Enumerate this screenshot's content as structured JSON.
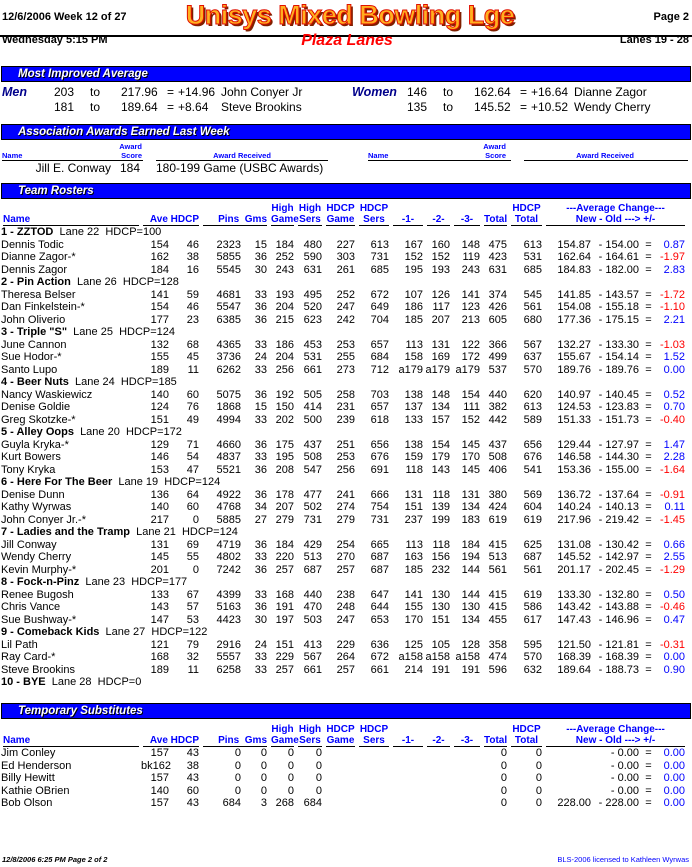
{
  "header": {
    "date_week": "12/6/2006   Week 12 of 27",
    "title": "Unisys Mixed Bowling Lge",
    "page": "Page 2",
    "day_time": "Wednesday   5:15 PM",
    "center": "Plaza Lanes",
    "lanes": "Lanes 19 - 28"
  },
  "most_improved": {
    "title": "Most Improved Average",
    "men_label": "Men",
    "women_label": "Women",
    "to": "to",
    "eq": "=",
    "men": [
      {
        "old": "203",
        "new": "217.96",
        "diff": "+14.96",
        "name": "John Conyer Jr"
      },
      {
        "old": "181",
        "new": "189.64",
        "diff": "+8.64",
        "name": "Steve Brookins"
      }
    ],
    "women": [
      {
        "old": "146",
        "new": "162.64",
        "diff": "+16.64",
        "name": "Dianne Zagor"
      },
      {
        "old": "135",
        "new": "145.52",
        "diff": "+10.52",
        "name": "Wendy Cherry"
      }
    ]
  },
  "awards": {
    "title": "Association Awards Earned Last Week",
    "col_name": "Name",
    "col_award": "Award",
    "col_score": "Score",
    "col_received": "Award Received",
    "rows": [
      {
        "name": "Jill E. Conway",
        "score": "184",
        "award": "180-199 Game (USBC Awards)"
      }
    ]
  },
  "rosters": {
    "title": "Team Rosters",
    "columns": {
      "name": "Name",
      "ave_hdcp": "Ave HDCP",
      "pins_gms": "Pins  Gms",
      "high": "High",
      "game": "Game",
      "sers": "Sers",
      "hdcp": "HDCP",
      "g1": "-1-",
      "g2": "-2-",
      "g3": "-3-",
      "total": "Total",
      "avg_change": "---Average Change---",
      "new_old": "New - Old ---> +/-"
    },
    "teams": [
      {
        "name": "1 - ZZTOD",
        "lane": "Lane 22",
        "hdcp": "HDCP=100",
        "players": [
          [
            "Dennis Todic",
            "154",
            "46",
            "2323",
            "15",
            "184",
            "480",
            "227",
            "613",
            "167",
            "160",
            "148",
            "475",
            "613",
            "154.87",
            "154.00",
            "0.87"
          ],
          [
            "Dianne Zagor-*",
            "162",
            "38",
            "5855",
            "36",
            "252",
            "590",
            "303",
            "731",
            "152",
            "152",
            "119",
            "423",
            "531",
            "162.64",
            "164.61",
            "-1.97"
          ],
          [
            "Dennis Zagor",
            "184",
            "16",
            "5545",
            "30",
            "243",
            "631",
            "261",
            "685",
            "195",
            "193",
            "243",
            "631",
            "685",
            "184.83",
            "182.00",
            "2.83"
          ]
        ]
      },
      {
        "name": "2 - Pin Action",
        "lane": "Lane 26",
        "hdcp": "HDCP=128",
        "players": [
          [
            "Theresa Belser",
            "141",
            "59",
            "4681",
            "33",
            "193",
            "495",
            "252",
            "672",
            "107",
            "126",
            "141",
            "374",
            "545",
            "141.85",
            "143.57",
            "-1.72"
          ],
          [
            "Dan Finkelstein-*",
            "154",
            "46",
            "5547",
            "36",
            "204",
            "520",
            "247",
            "649",
            "186",
            "117",
            "123",
            "426",
            "561",
            "154.08",
            "155.18",
            "-1.10"
          ],
          [
            "John Oliverio",
            "177",
            "23",
            "6385",
            "36",
            "215",
            "623",
            "242",
            "704",
            "185",
            "207",
            "213",
            "605",
            "680",
            "177.36",
            "175.15",
            "2.21"
          ]
        ]
      },
      {
        "name": "3 - Triple \"S\"",
        "lane": "Lane 25",
        "hdcp": "HDCP=124",
        "players": [
          [
            "June Cannon",
            "132",
            "68",
            "4365",
            "33",
            "186",
            "453",
            "253",
            "657",
            "113",
            "131",
            "122",
            "366",
            "567",
            "132.27",
            "133.30",
            "-1.03"
          ],
          [
            "Sue Hodor-*",
            "155",
            "45",
            "3736",
            "24",
            "204",
            "531",
            "255",
            "684",
            "158",
            "169",
            "172",
            "499",
            "637",
            "155.67",
            "154.14",
            "1.52"
          ],
          [
            "Santo Lupo",
            "189",
            "11",
            "6262",
            "33",
            "256",
            "661",
            "273",
            "712",
            "a179",
            "a179",
            "a179",
            "537",
            "570",
            "189.76",
            "189.76",
            "0.00"
          ]
        ]
      },
      {
        "name": "4 - Beer Nuts",
        "lane": "Lane 24",
        "hdcp": "HDCP=185",
        "players": [
          [
            "Nancy Waskiewicz",
            "140",
            "60",
            "5075",
            "36",
            "192",
            "505",
            "258",
            "703",
            "138",
            "148",
            "154",
            "440",
            "620",
            "140.97",
            "140.45",
            "0.52"
          ],
          [
            "Denise Goldie",
            "124",
            "76",
            "1868",
            "15",
            "150",
            "414",
            "231",
            "657",
            "137",
            "134",
            "111",
            "382",
            "613",
            "124.53",
            "123.83",
            "0.70"
          ],
          [
            "Greg Skotzke-*",
            "151",
            "49",
            "4994",
            "33",
            "202",
            "500",
            "239",
            "618",
            "133",
            "157",
            "152",
            "442",
            "589",
            "151.33",
            "151.73",
            "-0.40"
          ]
        ]
      },
      {
        "name": "5 - Alley Oops",
        "lane": "Lane 20",
        "hdcp": "HDCP=172",
        "players": [
          [
            "Guyla Kryka-*",
            "129",
            "71",
            "4660",
            "36",
            "175",
            "437",
            "251",
            "656",
            "138",
            "154",
            "145",
            "437",
            "656",
            "129.44",
            "127.97",
            "1.47"
          ],
          [
            "Kurt Bowers",
            "146",
            "54",
            "4837",
            "33",
            "195",
            "508",
            "253",
            "676",
            "159",
            "179",
            "170",
            "508",
            "676",
            "146.58",
            "144.30",
            "2.28"
          ],
          [
            "Tony Kryka",
            "153",
            "47",
            "5521",
            "36",
            "208",
            "547",
            "256",
            "691",
            "118",
            "143",
            "145",
            "406",
            "541",
            "153.36",
            "155.00",
            "-1.64"
          ]
        ]
      },
      {
        "name": "6 - Here For The Beer",
        "lane": "Lane 19",
        "hdcp": "HDCP=124",
        "players": [
          [
            "Denise Dunn",
            "136",
            "64",
            "4922",
            "36",
            "178",
            "477",
            "241",
            "666",
            "131",
            "118",
            "131",
            "380",
            "569",
            "136.72",
            "137.64",
            "-0.91"
          ],
          [
            "Kathy Wyrwas",
            "140",
            "60",
            "4768",
            "34",
            "207",
            "502",
            "274",
            "754",
            "151",
            "139",
            "134",
            "424",
            "604",
            "140.24",
            "140.13",
            "0.11"
          ],
          [
            "John Conyer Jr.-*",
            "217",
            "0",
            "5885",
            "27",
            "279",
            "731",
            "279",
            "731",
            "237",
            "199",
            "183",
            "619",
            "619",
            "217.96",
            "219.42",
            "-1.45"
          ]
        ]
      },
      {
        "name": "7 - Ladies and the Tramp",
        "lane": "Lane 21",
        "hdcp": "HDCP=124",
        "players": [
          [
            "Jill Conway",
            "131",
            "69",
            "4719",
            "36",
            "184",
            "429",
            "254",
            "665",
            "113",
            "118",
            "184",
            "415",
            "625",
            "131.08",
            "130.42",
            "0.66"
          ],
          [
            "Wendy Cherry",
            "145",
            "55",
            "4802",
            "33",
            "220",
            "513",
            "270",
            "687",
            "163",
            "156",
            "194",
            "513",
            "687",
            "145.52",
            "142.97",
            "2.55"
          ],
          [
            "Kevin Murphy-*",
            "201",
            "0",
            "7242",
            "36",
            "257",
            "687",
            "257",
            "687",
            "185",
            "232",
            "144",
            "561",
            "561",
            "201.17",
            "202.45",
            "-1.29"
          ]
        ]
      },
      {
        "name": "8 - Fock-n-Pinz",
        "lane": "Lane 23",
        "hdcp": "HDCP=177",
        "players": [
          [
            "Renee Bugosh",
            "133",
            "67",
            "4399",
            "33",
            "168",
            "440",
            "238",
            "647",
            "141",
            "130",
            "144",
            "415",
            "619",
            "133.30",
            "132.80",
            "0.50"
          ],
          [
            "Chris Vance",
            "143",
            "57",
            "5163",
            "36",
            "191",
            "470",
            "248",
            "644",
            "155",
            "130",
            "130",
            "415",
            "586",
            "143.42",
            "143.88",
            "-0.46"
          ],
          [
            "Sue Bushway-*",
            "147",
            "53",
            "4423",
            "30",
            "197",
            "503",
            "247",
            "653",
            "170",
            "151",
            "134",
            "455",
            "617",
            "147.43",
            "146.96",
            "0.47"
          ]
        ]
      },
      {
        "name": "9 - Comeback Kids",
        "lane": "Lane 27",
        "hdcp": "HDCP=122",
        "players": [
          [
            "Lil Path",
            "121",
            "79",
            "2916",
            "24",
            "151",
            "413",
            "229",
            "636",
            "125",
            "105",
            "128",
            "358",
            "595",
            "121.50",
            "121.81",
            "-0.31"
          ],
          [
            "Ray Card-*",
            "168",
            "32",
            "5557",
            "33",
            "229",
            "567",
            "264",
            "672",
            "a158",
            "a158",
            "a158",
            "474",
            "570",
            "168.39",
            "168.39",
            "0.00"
          ],
          [
            "Steve Brookins",
            "189",
            "11",
            "6258",
            "33",
            "257",
            "661",
            "257",
            "661",
            "214",
            "191",
            "191",
            "596",
            "632",
            "189.64",
            "188.73",
            "0.90"
          ]
        ]
      },
      {
        "name": "10 - BYE",
        "lane": "Lane 28",
        "hdcp": "HDCP=0",
        "players": []
      }
    ]
  },
  "subs": {
    "title": "Temporary Substitutes",
    "players": [
      [
        "Jim Conley",
        "157",
        "43",
        "0",
        "0",
        "0",
        "0",
        "",
        "",
        "",
        "",
        "",
        "0",
        "0",
        "",
        "0.00",
        "0.00"
      ],
      [
        "Ed Henderson",
        "bk162",
        "38",
        "0",
        "0",
        "0",
        "0",
        "",
        "",
        "",
        "",
        "",
        "0",
        "0",
        "",
        "0.00",
        "0.00"
      ],
      [
        "Billy Hewitt",
        "157",
        "43",
        "0",
        "0",
        "0",
        "0",
        "",
        "",
        "",
        "",
        "",
        "0",
        "0",
        "",
        "0.00",
        "0.00"
      ],
      [
        "Kathie OBrien",
        "140",
        "60",
        "0",
        "0",
        "0",
        "0",
        "",
        "",
        "",
        "",
        "",
        "0",
        "0",
        "",
        "0.00",
        "0.00"
      ],
      [
        "Bob Olson",
        "157",
        "43",
        "684",
        "3",
        "268",
        "684",
        "",
        "",
        "",
        "",
        "",
        "0",
        "0",
        "228.00",
        "228.00",
        "0.00"
      ]
    ]
  },
  "footer": {
    "left": "12/8/2006  6:25 PM  Page 2 of 2",
    "right": "BLS-2006 licensed to Kathleen Wyrwas"
  },
  "colors": {
    "bar": "#0000ff",
    "positive": "#0000ff",
    "negative": "#ff0000",
    "title_accent": "#ff0000"
  }
}
